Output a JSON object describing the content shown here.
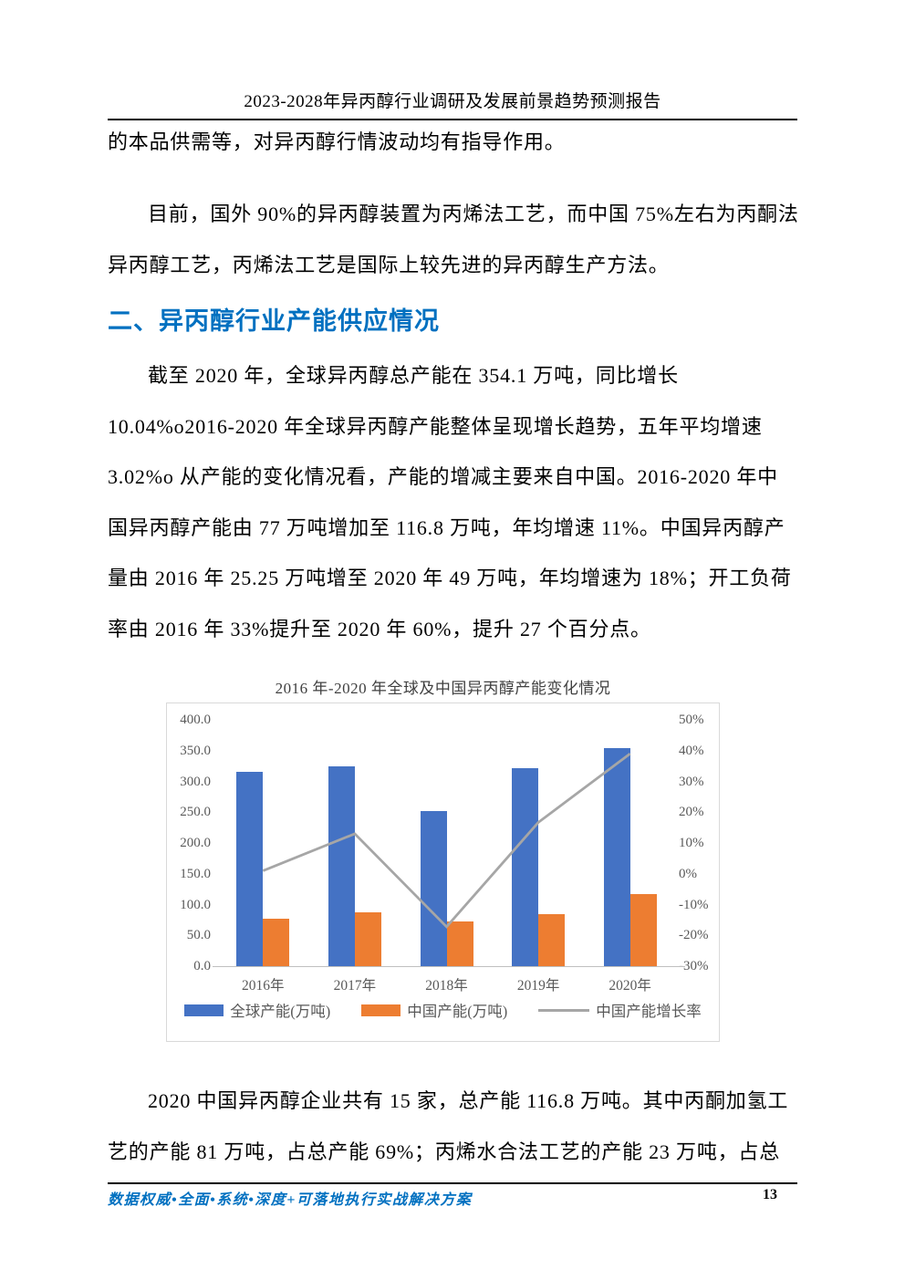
{
  "page": {
    "header_title": "2023-2028年异丙醇行业调研及发展前景趋势预测报告",
    "footer_text": "数据权威•全面•系统•深度+可落地执行实战解决方案",
    "page_number": "13"
  },
  "content": {
    "p1_lines": [
      "的本品供需等，对异丙醇行情波动均有指导作用。"
    ],
    "p2_lines": [
      "目前，国外 90%的异丙醇装置为丙烯法工艺，而中国 75%左右为丙酮法",
      "异丙醇工艺，丙烯法工艺是国际上较先进的异丙醇生产方法。"
    ],
    "section_heading": "二、异丙醇行业产能供应情况",
    "p3_lines": [
      "截至 2020 年，全球异丙醇总产能在 354.1 万吨，同比增长",
      "10.04%o2016-2020 年全球异丙醇产能整体呈现增长趋势，五年平均增速",
      "3.02%o 从产能的变化情况看，产能的增减主要来自中国。2016-2020 年中",
      "国异丙醇产能由 77 万吨增加至 116.8 万吨，年均增速 11%。中国异丙醇产",
      "量由 2016 年 25.25 万吨增至 2020 年 49 万吨，年均增速为 18%；开工负荷",
      "率由 2016 年 33%提升至 2020 年 60%，提升 27 个百分点。"
    ],
    "p4_lines": [
      "2020 中国异丙醇企业共有 15 家，总产能 116.8 万吨。其中丙酮加氢工",
      "艺的产能 81 万吨，占总产能 69%；丙烯水合法工艺的产能 23 万吨，占总"
    ]
  },
  "chart_data": {
    "type": "bar",
    "subtype": "bar+line-combo",
    "title": "2016 年-2020 年全球及中国异丙醇产能变化情况",
    "categories": [
      "2016年",
      "2017年",
      "2018年",
      "2019年",
      "2020年"
    ],
    "series": [
      {
        "name": "全球产能(万吨)",
        "kind": "bar",
        "axis": "left",
        "color": "#4472C4",
        "values": [
          315,
          324,
          252,
          322,
          354.1
        ]
      },
      {
        "name": "中国产能(万吨)",
        "kind": "bar",
        "axis": "left",
        "color": "#ED7D31",
        "values": [
          77,
          87,
          72,
          84,
          116.8
        ]
      },
      {
        "name": "中国产能增长率",
        "kind": "line",
        "axis": "right",
        "color": "#A6A6A6",
        "unit": "%",
        "values": [
          1,
          13,
          -17.2,
          16.7,
          39
        ]
      }
    ],
    "left_axis": {
      "min": 0,
      "max": 400,
      "tick_labels": [
        "400.0",
        "350.0",
        "300.0",
        "250.0",
        "200.0",
        "150.0",
        "100.0",
        "50.0",
        "0.0"
      ]
    },
    "right_axis": {
      "min": -30,
      "max": 50,
      "tick_labels": [
        "50%",
        "40%",
        "30%",
        "20%",
        "10%",
        "0%",
        "-10%",
        "-20%",
        "-30%"
      ]
    },
    "grid": false,
    "legend_position": "bottom"
  }
}
